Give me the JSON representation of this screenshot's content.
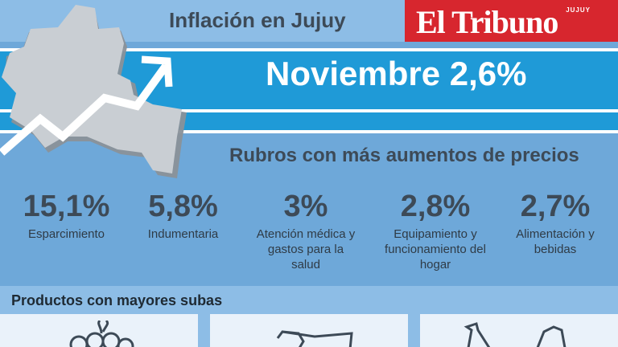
{
  "header": {
    "title": "Inflación en Jujuy",
    "logo_main": "El Tribuno",
    "logo_sub": "JUJUY"
  },
  "headline": "Noviembre 2,6%",
  "section_title": "Rubros con más aumentos de precios",
  "rubros": [
    {
      "pct": "15,1%",
      "label": "Esparcimiento"
    },
    {
      "pct": "5,8%",
      "label": "Indumentaria"
    },
    {
      "pct": "3%",
      "label": "Atención médica y gastos para la salud"
    },
    {
      "pct": "2,8%",
      "label": "Equipamiento y funcionamiento del hogar"
    },
    {
      "pct": "2,7%",
      "label": "Alimentación y bebidas"
    }
  ],
  "products_title": "Productos con mayores subas",
  "icons": [
    "jujuy-map-icon",
    "trend-arrow-icon",
    "grapes-icon",
    "glasses-icon",
    "bananas-icon"
  ],
  "colors": {
    "background": "#6ea8d9",
    "band": "#1f9ad7",
    "brand_red": "#d7262e",
    "text_dark": "#3d4a57"
  }
}
